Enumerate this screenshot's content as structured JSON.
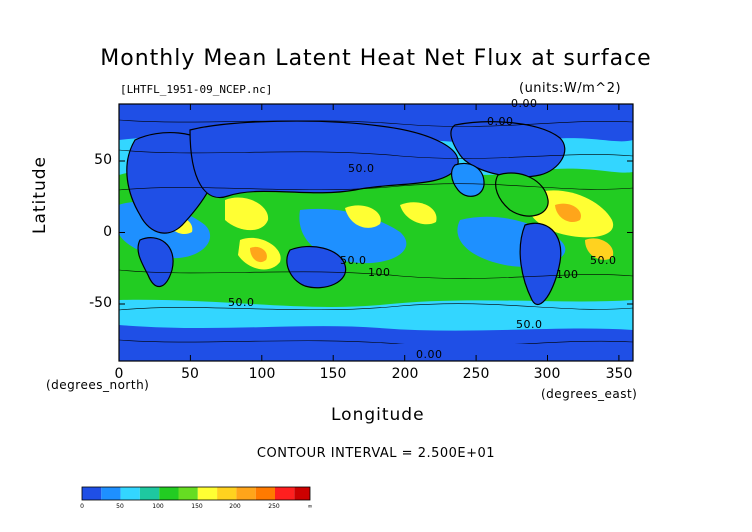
{
  "title": "Monthly Mean Latent Heat Net Flux at surface",
  "source_file": "[LHTFL_1951-09_NCEP.nc]",
  "units": "(units:W/m^2)",
  "contour_interval": "CONTOUR INTERVAL = 2.500E+01",
  "axes": {
    "xlabel": "Longitude",
    "ylabel": "Latitude",
    "x_unit": "(degrees_east)",
    "y_unit": "(degrees_north)",
    "x_ticks": [
      "0",
      "50",
      "100",
      "150",
      "200",
      "250",
      "300",
      "350"
    ],
    "y_ticks": [
      "50",
      "0",
      "-50"
    ],
    "xlim": [
      0,
      360
    ],
    "ylim": [
      -90,
      90
    ]
  },
  "contour_labels": [
    "0.00",
    "0.00",
    "50.0",
    "50.0",
    "100",
    "50.0",
    "100",
    "50.0",
    "50.0",
    "0.00"
  ],
  "colorbar": {
    "levels": [
      "0",
      "50",
      "100",
      "150",
      "200",
      "250",
      "∞"
    ],
    "colors": [
      "#1f4fe6",
      "#1e90ff",
      "#33d6ff",
      "#1ec8a0",
      "#22cc22",
      "#66dd22",
      "#ffff33",
      "#ffd21f",
      "#ffa51a",
      "#ff7a00",
      "#ff1f1f",
      "#cc0000"
    ]
  }
}
